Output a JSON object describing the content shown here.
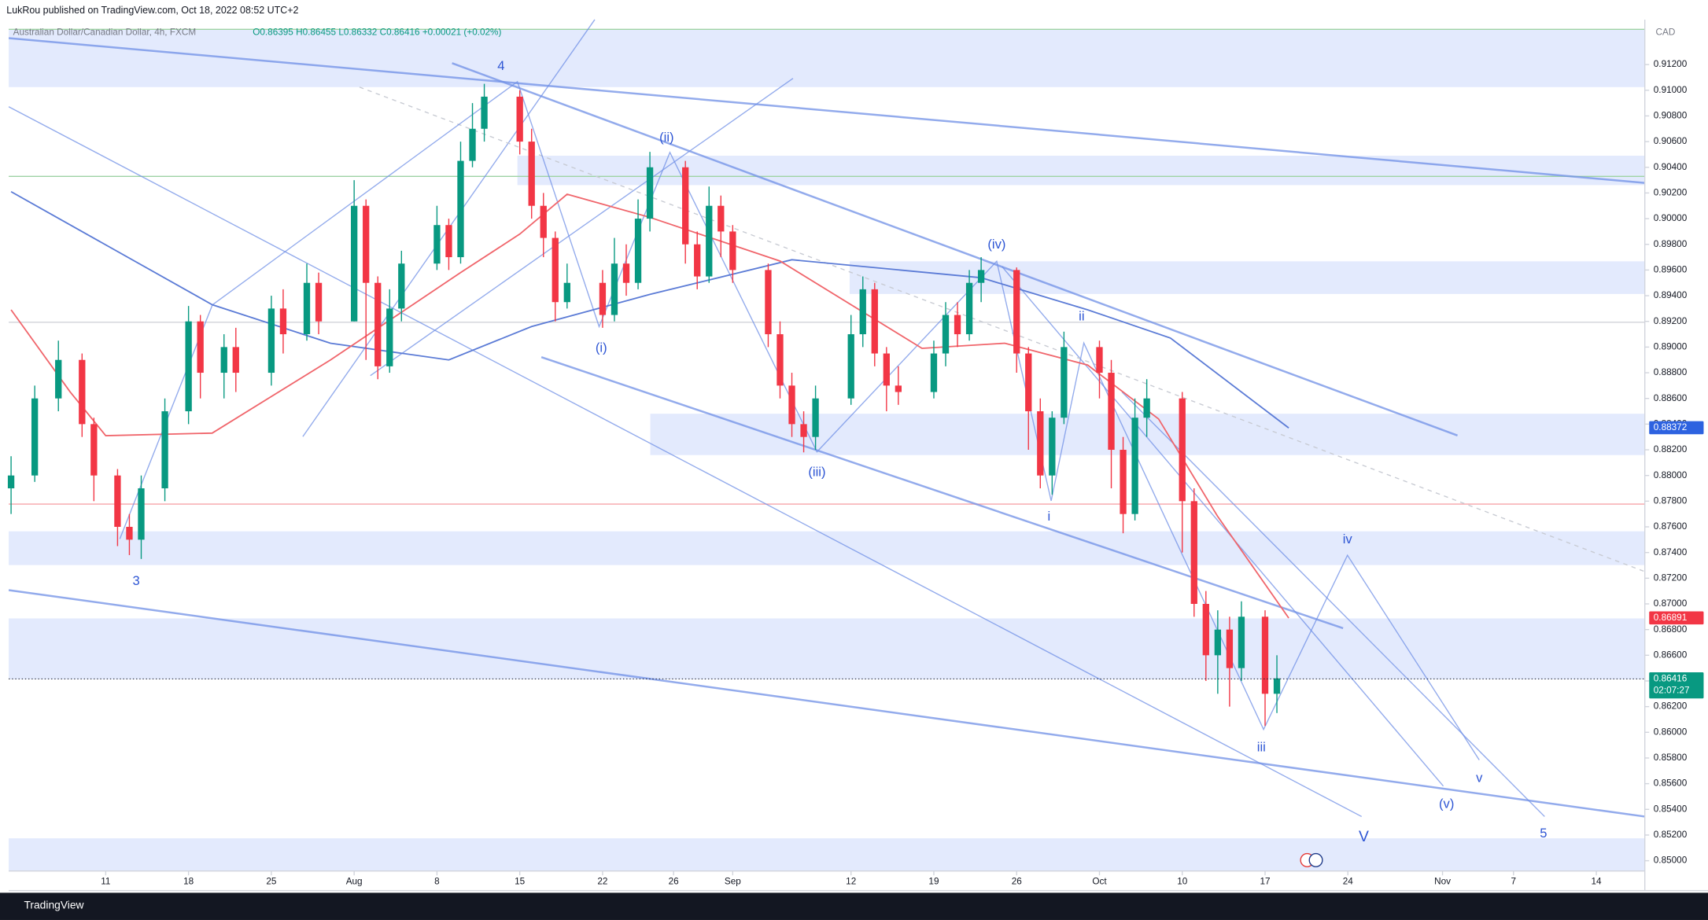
{
  "header": {
    "published": "LukRou published on TradingView.com, Oct 18, 2022 08:52 UTC+2",
    "symbol": "Australian Dollar/Canadian Dollar, 4h, FXCM",
    "ohlc": "O0.86395 H0.86455 L0.86332 C0.86416 +0.00021 (+0.02%)"
  },
  "footer": {
    "brand": "TradingView"
  },
  "chart_data": {
    "type": "candlestick",
    "currency": "CAD",
    "ylim": [
      0.8492,
      0.9155
    ],
    "xlim": [
      -8.2,
      130.1
    ],
    "yticks": [
      {
        "value": 0.912,
        "label": "0.91200"
      },
      {
        "value": 0.91,
        "label": "0.91000"
      },
      {
        "value": 0.908,
        "label": "0.90800"
      },
      {
        "value": 0.906,
        "label": "0.90600"
      },
      {
        "value": 0.904,
        "label": "0.90400"
      },
      {
        "value": 0.902,
        "label": "0.90200"
      },
      {
        "value": 0.9,
        "label": "0.90000"
      },
      {
        "value": 0.898,
        "label": "0.89800"
      },
      {
        "value": 0.896,
        "label": "0.89600"
      },
      {
        "value": 0.894,
        "label": "0.89400"
      },
      {
        "value": 0.892,
        "label": "0.89200"
      },
      {
        "value": 0.89,
        "label": "0.89000"
      },
      {
        "value": 0.888,
        "label": "0.88800"
      },
      {
        "value": 0.886,
        "label": "0.88600"
      },
      {
        "value": 0.884,
        "label": "0.88400"
      },
      {
        "value": 0.882,
        "label": "0.88200"
      },
      {
        "value": 0.88,
        "label": "0.88000"
      },
      {
        "value": 0.878,
        "label": "0.87800"
      },
      {
        "value": 0.876,
        "label": "0.87600"
      },
      {
        "value": 0.874,
        "label": "0.87400"
      },
      {
        "value": 0.872,
        "label": "0.87200"
      },
      {
        "value": 0.87,
        "label": "0.87000"
      },
      {
        "value": 0.868,
        "label": "0.86800"
      },
      {
        "value": 0.866,
        "label": "0.86600"
      },
      {
        "value": 0.864,
        "label": "0.86400"
      },
      {
        "value": 0.862,
        "label": "0.86200"
      },
      {
        "value": 0.86,
        "label": "0.86000"
      },
      {
        "value": 0.858,
        "label": "0.85800"
      },
      {
        "value": 0.856,
        "label": "0.85600"
      },
      {
        "value": 0.854,
        "label": "0.85400"
      },
      {
        "value": 0.852,
        "label": "0.85200"
      },
      {
        "value": 0.85,
        "label": "0.85000"
      }
    ],
    "xticks": [
      {
        "value": 0,
        "label": "11"
      },
      {
        "value": 7,
        "label": "18"
      },
      {
        "value": 14,
        "label": "25"
      },
      {
        "value": 21,
        "label": "Aug"
      },
      {
        "value": 28,
        "label": "8"
      },
      {
        "value": 35,
        "label": "15"
      },
      {
        "value": 42,
        "label": "22"
      },
      {
        "value": 48,
        "label": "26"
      },
      {
        "value": 53,
        "label": "Sep"
      },
      {
        "value": 63,
        "label": "12"
      },
      {
        "value": 70,
        "label": "19"
      },
      {
        "value": 77,
        "label": "26"
      },
      {
        "value": 84,
        "label": "Oct"
      },
      {
        "value": 91,
        "label": "10"
      },
      {
        "value": 98,
        "label": "17"
      },
      {
        "value": 105,
        "label": "24"
      },
      {
        "value": 113,
        "label": "Nov"
      },
      {
        "value": 119,
        "label": "7"
      },
      {
        "value": 126,
        "label": "14"
      }
    ],
    "up_color": "#089981",
    "down_color": "#f23645",
    "days": [
      -8,
      -6,
      -4,
      -2,
      -1,
      1,
      2,
      3,
      5,
      7,
      8,
      10,
      11,
      14,
      15,
      17,
      18,
      21,
      22,
      23,
      24,
      25,
      28,
      29,
      30,
      31,
      32,
      35,
      36,
      37,
      38,
      39,
      42,
      43,
      44,
      45,
      46,
      49,
      50,
      51,
      52,
      53,
      56,
      57,
      58,
      59,
      60,
      63,
      64,
      65,
      66,
      67,
      70,
      71,
      72,
      73,
      74,
      77,
      78,
      79,
      80,
      81,
      84,
      85,
      86,
      87,
      88,
      91,
      92,
      93,
      94,
      95,
      96,
      98,
      99
    ],
    "open": [
      0.879,
      0.88,
      0.886,
      0.889,
      0.884,
      0.88,
      0.876,
      0.875,
      0.879,
      0.885,
      0.892,
      0.888,
      0.89,
      0.888,
      0.893,
      0.891,
      0.895,
      0.892,
      0.901,
      0.895,
      0.8885,
      0.893,
      0.8965,
      0.8995,
      0.897,
      0.9045,
      0.907,
      0.9095,
      0.906,
      0.901,
      0.8985,
      0.8935,
      0.895,
      0.8925,
      0.8965,
      0.895,
      0.9,
      0.904,
      0.898,
      0.8955,
      0.901,
      0.899,
      0.896,
      0.891,
      0.887,
      0.884,
      0.883,
      0.886,
      0.891,
      0.8945,
      0.8895,
      0.887,
      0.8865,
      0.8895,
      0.8925,
      0.891,
      0.895,
      0.896,
      0.8895,
      0.885,
      0.88,
      0.8845,
      0.89,
      0.888,
      0.882,
      0.877,
      0.8845,
      0.886,
      0.878,
      0.87,
      0.866,
      0.868,
      0.865,
      0.869,
      0.863
    ],
    "high": [
      0.8815,
      0.887,
      0.8905,
      0.8895,
      0.8845,
      0.8805,
      0.877,
      0.88,
      0.886,
      0.8932,
      0.8925,
      0.891,
      0.8915,
      0.894,
      0.8945,
      0.8965,
      0.8958,
      0.903,
      0.9015,
      0.8955,
      0.8945,
      0.8975,
      0.901,
      0.9,
      0.906,
      0.909,
      0.9105,
      0.91,
      0.907,
      0.902,
      0.899,
      0.8965,
      0.896,
      0.8985,
      0.898,
      0.9015,
      0.9052,
      0.9045,
      0.899,
      0.9025,
      0.9018,
      0.8995,
      0.8965,
      0.892,
      0.888,
      0.885,
      0.887,
      0.8925,
      0.8955,
      0.895,
      0.89,
      0.8885,
      0.8905,
      0.8935,
      0.8935,
      0.896,
      0.897,
      0.8962,
      0.89,
      0.886,
      0.885,
      0.8912,
      0.8905,
      0.889,
      0.883,
      0.886,
      0.8875,
      0.8865,
      0.879,
      0.871,
      0.8695,
      0.869,
      0.8702,
      0.8695,
      0.866
    ],
    "low": [
      0.877,
      0.8795,
      0.885,
      0.883,
      0.878,
      0.8745,
      0.8738,
      0.8735,
      0.878,
      0.884,
      0.886,
      0.886,
      0.8865,
      0.887,
      0.8895,
      0.8905,
      0.891,
      0.892,
      0.889,
      0.8875,
      0.888,
      0.892,
      0.896,
      0.896,
      0.8965,
      0.904,
      0.906,
      0.905,
      0.9,
      0.897,
      0.892,
      0.893,
      0.8915,
      0.892,
      0.894,
      0.8945,
      0.899,
      0.8965,
      0.8945,
      0.895,
      0.897,
      0.895,
      0.89,
      0.886,
      0.883,
      0.8818,
      0.882,
      0.8855,
      0.89,
      0.8885,
      0.885,
      0.8855,
      0.886,
      0.8885,
      0.89,
      0.8905,
      0.8935,
      0.888,
      0.882,
      0.879,
      0.8785,
      0.884,
      0.886,
      0.879,
      0.8755,
      0.8765,
      0.883,
      0.874,
      0.869,
      0.864,
      0.863,
      0.862,
      0.864,
      0.8605,
      0.8615
    ],
    "close": [
      0.88,
      0.886,
      0.889,
      0.884,
      0.88,
      0.876,
      0.875,
      0.879,
      0.885,
      0.892,
      0.888,
      0.89,
      0.888,
      0.893,
      0.891,
      0.895,
      0.892,
      0.901,
      0.895,
      0.8885,
      0.893,
      0.8965,
      0.8995,
      0.897,
      0.9045,
      0.907,
      0.9095,
      0.906,
      0.901,
      0.8985,
      0.8935,
      0.895,
      0.8925,
      0.8965,
      0.895,
      0.9,
      0.904,
      0.898,
      0.8955,
      0.901,
      0.899,
      0.896,
      0.891,
      0.887,
      0.884,
      0.883,
      0.886,
      0.891,
      0.8945,
      0.8895,
      0.887,
      0.8865,
      0.8895,
      0.8925,
      0.891,
      0.895,
      0.896,
      0.8895,
      0.885,
      0.88,
      0.8845,
      0.89,
      0.888,
      0.882,
      0.877,
      0.8845,
      0.886,
      0.878,
      0.87,
      0.866,
      0.868,
      0.865,
      0.869,
      0.863,
      0.8642
    ],
    "averages": [
      {
        "color": "#5b7bd6",
        "days": [
          -8,
          9,
          19,
          29,
          36,
          46,
          58,
          74,
          83,
          90,
          100
        ],
        "values": [
          0.9021,
          0.8933,
          0.8903,
          0.889,
          0.8916,
          0.8941,
          0.8968,
          0.8954,
          0.8929,
          0.8907,
          0.8837
        ]
      },
      {
        "color": "#f0656b",
        "days": [
          -8,
          -3,
          0,
          9,
          19,
          30,
          35,
          39,
          46,
          57,
          69,
          76,
          83,
          89,
          94,
          100
        ],
        "values": [
          0.8929,
          0.8865,
          0.8831,
          0.8833,
          0.889,
          0.8958,
          0.8988,
          0.9019,
          0.9001,
          0.8967,
          0.8899,
          0.8903,
          0.8886,
          0.8844,
          0.8768,
          0.8689
        ]
      }
    ],
    "hlines": [
      {
        "value": 0.91474,
        "color": "#9ed3a4"
      },
      {
        "value": 0.90329,
        "color": "#9ed3a4"
      },
      {
        "value": 0.89193,
        "color": "#d0d3da"
      },
      {
        "value": 0.87777,
        "color": "#f5a3a8"
      }
    ],
    "price_tags": [
      {
        "value": 0.88372,
        "color": "#2d62e0"
      },
      {
        "value": 0.86891,
        "color": "#f23645"
      },
      {
        "value": 0.86416,
        "color": "#089981",
        "countdown": "02:07:27"
      }
    ],
    "waves": [
      "4",
      "3",
      "(ii)",
      "(i)",
      "(iii)",
      "(iv)",
      "ii",
      "i",
      "iii",
      "iv",
      "(v)",
      "v",
      "V",
      "5"
    ]
  }
}
